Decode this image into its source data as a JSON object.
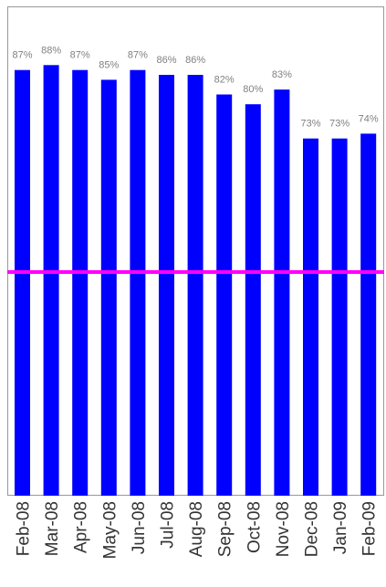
{
  "chart_data": {
    "type": "bar",
    "title": "",
    "xlabel": "",
    "ylabel": "",
    "categories": [
      "Feb-08",
      "Mar-08",
      "Apr-08",
      "May-08",
      "Jun-08",
      "Jul-08",
      "Aug-08",
      "Sep-08",
      "Oct-08",
      "Nov-08",
      "Dec-08",
      "Jan-09",
      "Feb-09"
    ],
    "series": [
      {
        "values": [
          87,
          88,
          87,
          85,
          87,
          86,
          86,
          82,
          80,
          83,
          73,
          73,
          74
        ],
        "labels": [
          "87%",
          "88%",
          "87%",
          "85%",
          "87%",
          "86%",
          "86%",
          "82%",
          "80%",
          "83%",
          "73%",
          "73%",
          "74%"
        ],
        "color": "#0000ff"
      }
    ],
    "reference_line": {
      "value": 50,
      "color": "#ff00ff"
    },
    "ylim": [
      0,
      100
    ],
    "grid": false,
    "legend": "none"
  }
}
